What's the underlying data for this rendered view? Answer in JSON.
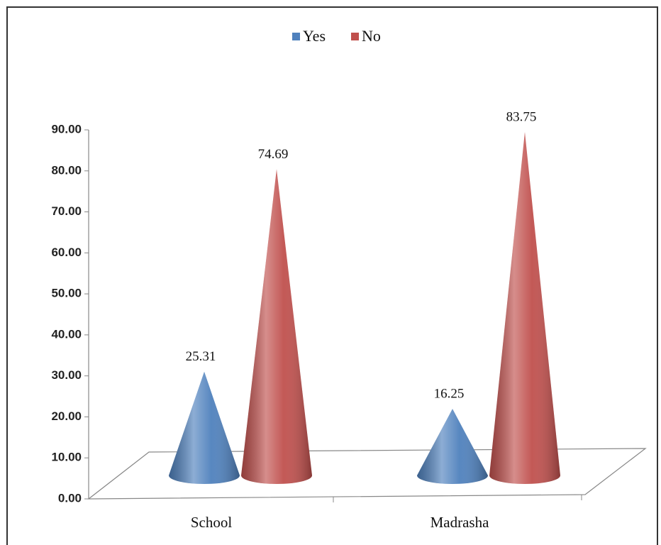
{
  "chart_data": {
    "type": "cone",
    "categories": [
      "School",
      "Madrasha"
    ],
    "series": [
      {
        "name": "Yes",
        "color": "#4f81bd",
        "values": [
          25.31,
          16.25
        ]
      },
      {
        "name": "No",
        "color": "#c0504d",
        "values": [
          74.69,
          83.75
        ]
      }
    ],
    "ylim": [
      0,
      90
    ],
    "yticks": [
      {
        "value": 0,
        "label": "0.00"
      },
      {
        "value": 10,
        "label": "10.00"
      },
      {
        "value": 20,
        "label": "20.00"
      },
      {
        "value": 30,
        "label": "30.00"
      },
      {
        "value": 40,
        "label": "40.00"
      },
      {
        "value": 50,
        "label": "50.00"
      },
      {
        "value": 60,
        "label": "60.00"
      },
      {
        "value": 70,
        "label": "70.00"
      },
      {
        "value": 80,
        "label": "80.00"
      },
      {
        "value": 90,
        "label": "90.00"
      }
    ],
    "legend": "top"
  }
}
